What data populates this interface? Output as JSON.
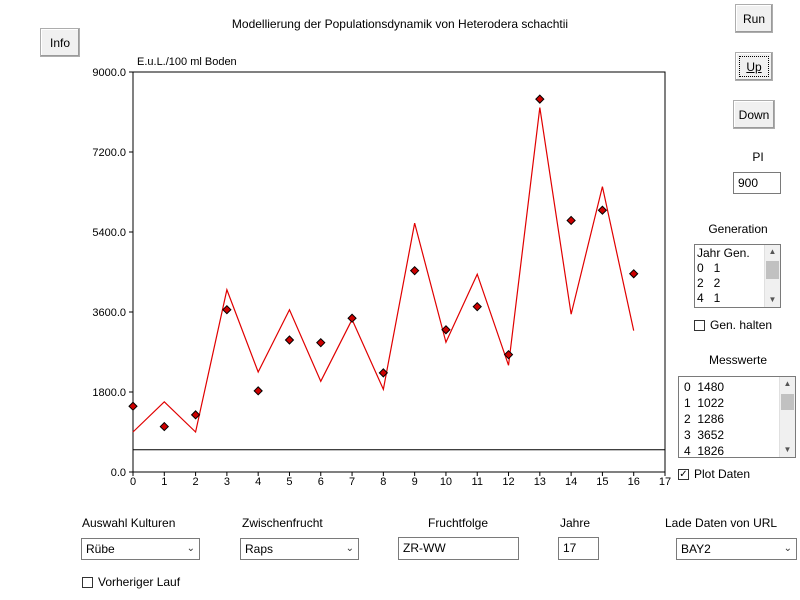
{
  "window": {
    "title": "Modellierung der Populationsdynamik von Heterodera schachtii"
  },
  "buttons": {
    "info": "Info",
    "run": "Run",
    "up": "Up",
    "down": "Down"
  },
  "pi": {
    "label": "PI",
    "value": "900"
  },
  "generation": {
    "label": "Generation",
    "rows": [
      "Jahr Gen.",
      "0   1",
      "2   2",
      "4   1"
    ],
    "hold_label": "Gen. halten",
    "hold_checked": false
  },
  "messwerte": {
    "label": "Messwerte",
    "rows": [
      "0  1480",
      "1  1022",
      "2  1286",
      "3  3652",
      "4  1826"
    ],
    "plot_label": "Plot Daten",
    "plot_checked": true
  },
  "controls": {
    "kulturen_label": "Auswahl Kulturen",
    "kulturen_value": "Rübe",
    "zwischen_label": "Zwischenfrucht",
    "zwischen_value": "Raps",
    "fruchtfolge_label": "Fruchtfolge",
    "fruchtfolge_value": "ZR-WW",
    "jahre_label": "Jahre",
    "jahre_value": "17",
    "url_label": "Lade Daten von URL",
    "url_value": "BAY2",
    "vorheriger_label": "Vorheriger Lauf",
    "vorheriger_checked": false
  },
  "chart_data": {
    "type": "line",
    "title": "Modellierung der Populationsdynamik von Heterodera schachtii",
    "ylabel": "E.u.L./100 ml Boden",
    "xlabel": "",
    "xlim": [
      0,
      17
    ],
    "ylim": [
      0,
      9000
    ],
    "x_ticks": [
      "0",
      "1",
      "2",
      "3",
      "4",
      "5",
      "6",
      "7",
      "8",
      "9",
      "10",
      "11",
      "12",
      "13",
      "14",
      "15",
      "16",
      "17"
    ],
    "y_ticks": [
      "0.0",
      "1800.0",
      "3600.0",
      "5400.0",
      "7200.0",
      "9000.0"
    ],
    "grid": false,
    "threshold_line": 500,
    "colors": {
      "model": "#e00000",
      "points": "#cc0000",
      "threshold": "#000000"
    },
    "series": [
      {
        "kind": "line",
        "x": [
          0,
          1,
          2,
          3,
          4,
          5,
          6,
          7,
          8,
          9,
          10,
          11,
          12,
          13,
          14,
          15,
          16
        ],
        "values": [
          900,
          1580,
          900,
          4100,
          2250,
          3650,
          2040,
          3430,
          1860,
          5600,
          2920,
          4450,
          2400,
          8200,
          3550,
          6420,
          3180
        ]
      },
      {
        "kind": "points",
        "x": [
          0,
          1,
          2,
          3,
          4,
          5,
          6,
          7,
          8,
          9,
          10,
          11,
          12,
          13,
          14,
          15,
          16
        ],
        "values": [
          1480,
          1022,
          1286,
          3652,
          1826,
          2970,
          2910,
          3460,
          2230,
          4530,
          3200,
          3720,
          2640,
          8390,
          5660,
          5890,
          4460
        ]
      }
    ]
  }
}
